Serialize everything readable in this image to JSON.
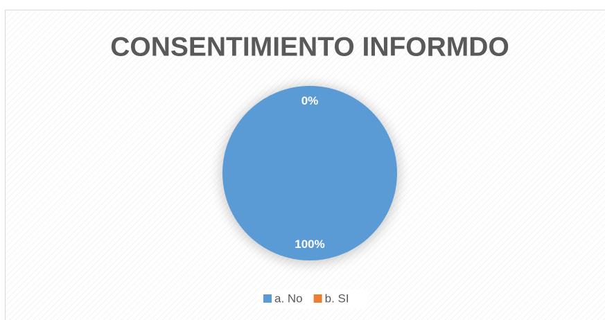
{
  "chart_data": {
    "type": "pie",
    "title": "CONSENTIMIENTO INFORMDO",
    "categories": [
      "a. No",
      "b. SI"
    ],
    "values": [
      100,
      0
    ],
    "value_labels": [
      "100%",
      "0%"
    ],
    "colors": [
      "#5b9bd5",
      "#ed7d31"
    ],
    "legend": "bottom"
  }
}
